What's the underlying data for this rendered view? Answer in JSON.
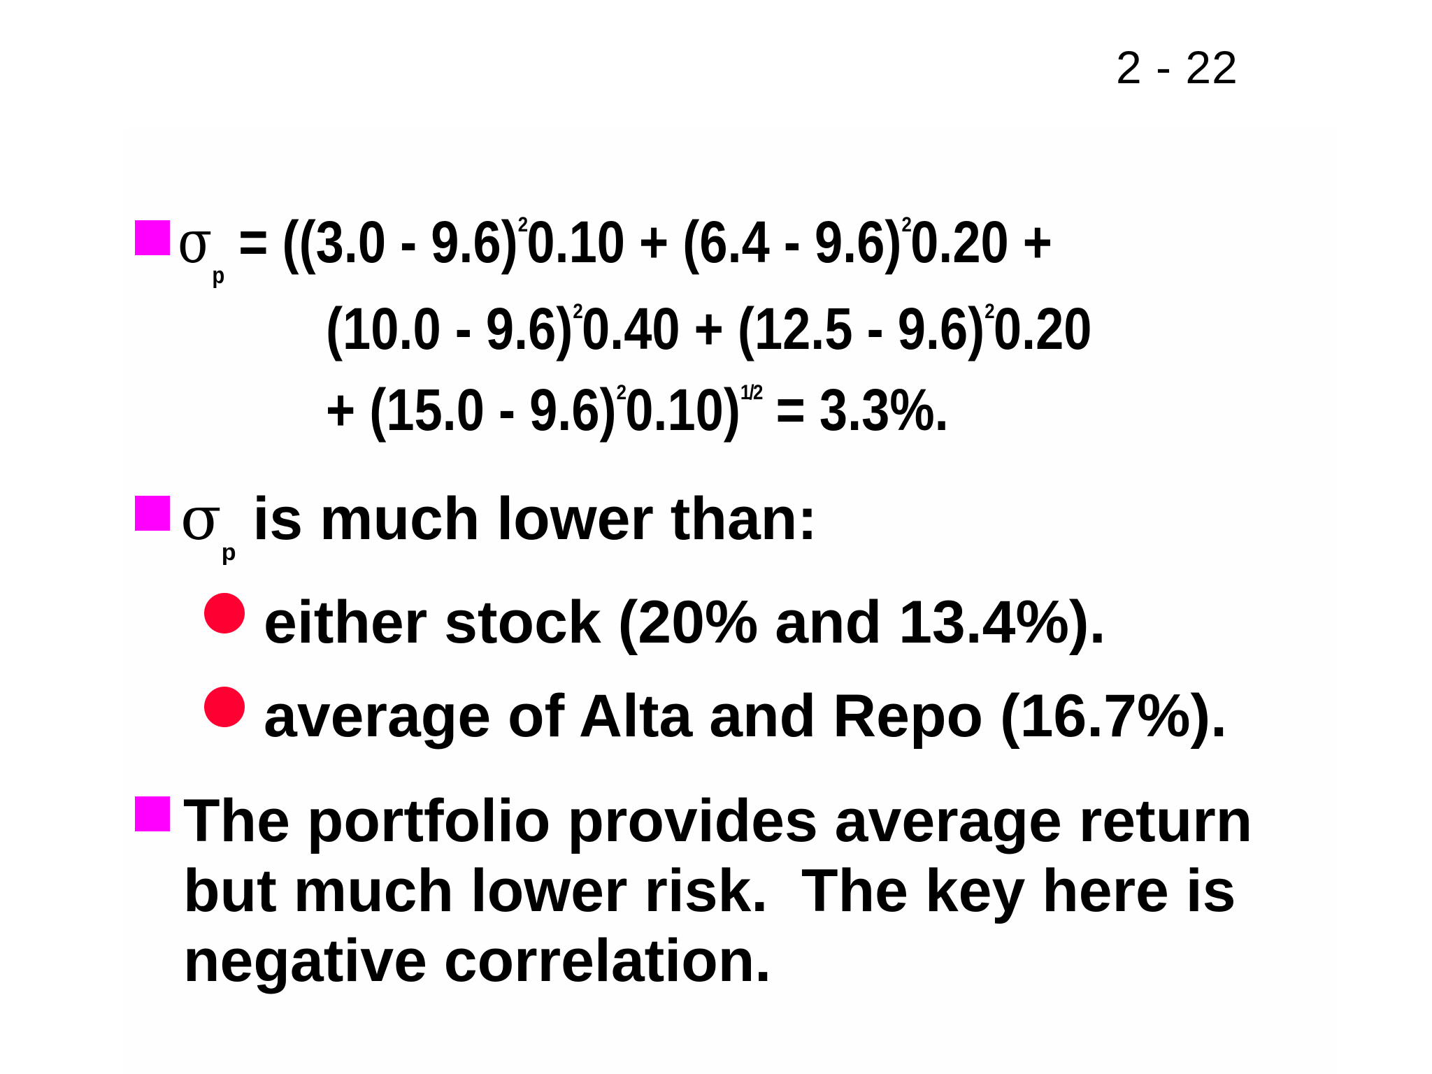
{
  "slide": {
    "page_number": "2 - 22",
    "colors": {
      "square_bullet": "#ff00ff",
      "round_bullet": "#ff0033",
      "text": "#000000",
      "background": "#ffffff"
    },
    "bullets": [
      {
        "symbol": "σ",
        "subscript": "p",
        "formula": {
          "line1": [
            " = ((3.0 - 9.6)",
            "2",
            "0.10 + (6.4 - 9.6)",
            "2",
            "0.20 +"
          ],
          "line2": [
            "(10.0 - 9.6)",
            "2",
            "0.40 + (12.5 - 9.6)",
            "2",
            "0.20"
          ],
          "line3": [
            "+ (15.0 - 9.6)",
            "2",
            "0.10)",
            "1/2",
            " = 3.3%."
          ]
        }
      },
      {
        "symbol": "σ",
        "subscript": "p",
        "text": " is much lower than:",
        "sub_items": [
          "either stock (20% and 13.4%).",
          "average of Alta and Repo (16.7%)."
        ]
      },
      {
        "lines": [
          "The portfolio provides average return",
          "but much lower risk.  The key here is",
          "negative correlation."
        ]
      }
    ]
  }
}
